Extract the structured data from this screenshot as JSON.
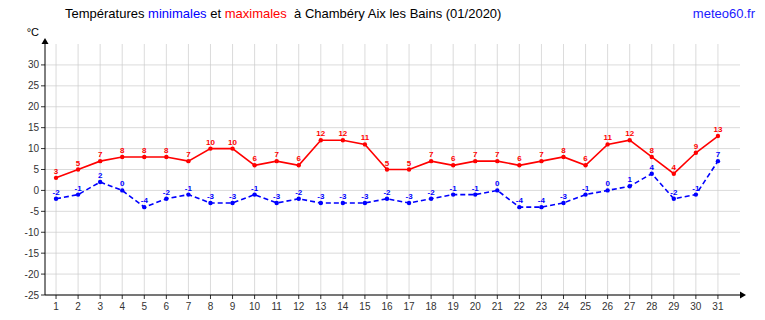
{
  "chart_data": {
    "type": "line",
    "title": "Températures minimales et maximales  à Chambéry Aix les Bains (01/2020)",
    "y_label": "°C",
    "annotations": [
      {
        "text": "meteo60.fr",
        "color": "#1a1aff"
      }
    ],
    "x": [
      1,
      2,
      3,
      4,
      5,
      6,
      7,
      8,
      9,
      10,
      11,
      12,
      13,
      14,
      15,
      16,
      17,
      18,
      19,
      20,
      21,
      22,
      23,
      24,
      25,
      26,
      27,
      28,
      29,
      30,
      31
    ],
    "xlim": [
      0.5,
      32.0
    ],
    "xticks": [
      1,
      2,
      3,
      4,
      5,
      6,
      7,
      8,
      9,
      10,
      11,
      12,
      13,
      14,
      15,
      16,
      17,
      18,
      19,
      20,
      21,
      22,
      23,
      24,
      25,
      26,
      27,
      28,
      29,
      30,
      31
    ],
    "ylim": [
      -25,
      35
    ],
    "yticks": [
      -25,
      -20,
      -15,
      -10,
      -5,
      0,
      5,
      10,
      15,
      20,
      25,
      30
    ],
    "grid": true,
    "data_labels": true,
    "series": [
      {
        "name": "minimales",
        "color": "#0000ff",
        "line_style": "dashed",
        "marker": "circle",
        "values": [
          -2,
          -1,
          2,
          0,
          -4,
          -2,
          -1,
          -3,
          -3,
          -1,
          -3,
          -2,
          -3,
          -3,
          -3,
          -2,
          -3,
          -2,
          -1,
          -1,
          0,
          -4,
          -4,
          -3,
          -1,
          0,
          1,
          4,
          -2,
          -1,
          7
        ]
      },
      {
        "name": "maximales",
        "color": "#ff0000",
        "line_style": "solid",
        "marker": "circle",
        "values": [
          3,
          5,
          7,
          8,
          8,
          8,
          7,
          10,
          10,
          6,
          7,
          6,
          12,
          12,
          11,
          5,
          5,
          7,
          6,
          7,
          7,
          6,
          7,
          8,
          6,
          11,
          12,
          8,
          4,
          9,
          13
        ]
      }
    ]
  }
}
